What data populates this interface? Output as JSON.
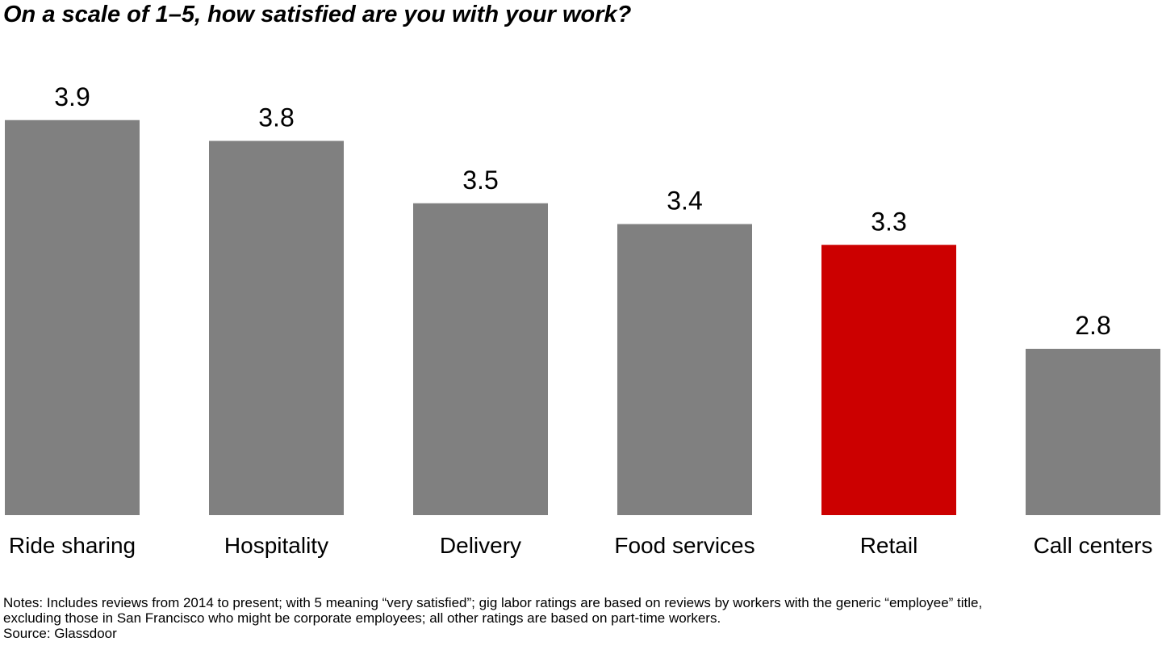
{
  "chart_data": {
    "type": "bar",
    "title": "On a scale of 1–5, how satisfied are you with your work?",
    "categories": [
      "Ride sharing",
      "Hospitality",
      "Delivery",
      "Food services",
      "Retail",
      "Call centers"
    ],
    "values": [
      3.9,
      3.8,
      3.5,
      3.4,
      3.3,
      2.8
    ],
    "value_labels": [
      "3.9",
      "3.8",
      "3.5",
      "3.4",
      "3.3",
      "2.8"
    ],
    "highlight_category": "Retail",
    "colors": {
      "default": "#808080",
      "highlight": "#cc0000"
    },
    "ylim": [
      2.0,
      4.0
    ],
    "grid": false,
    "legend": "none"
  },
  "notes": {
    "lines": [
      "Notes: Includes reviews from 2014 to present; with 5 meaning “very satisfied”; gig labor ratings are based on reviews by workers with the generic “employee” title,",
      "excluding those in San Francisco who might be corporate employees; all other ratings are based on part-time workers."
    ],
    "source": "Source: Glassdoor"
  }
}
